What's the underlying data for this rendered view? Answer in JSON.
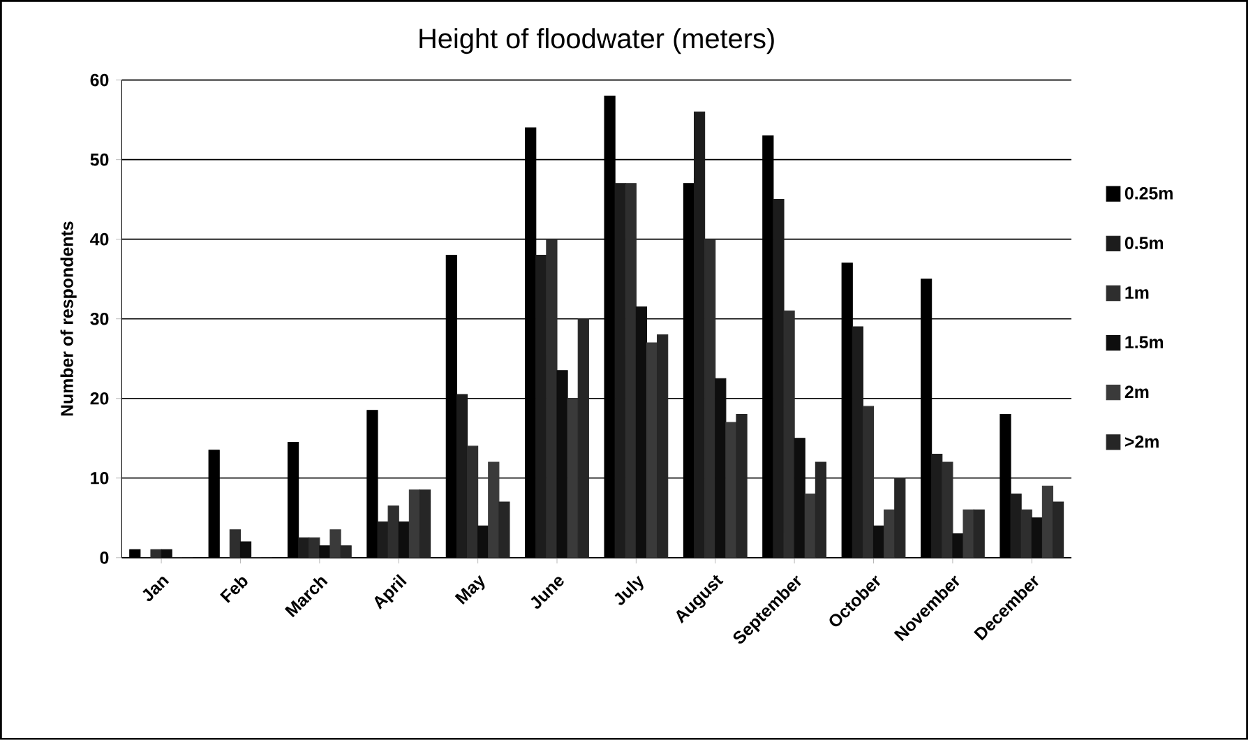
{
  "chart_data": {
    "type": "bar",
    "title": "Height of floodwater (meters)",
    "ylabel": "Number of respondents",
    "categories": [
      "Jan",
      "Feb",
      "March",
      "April",
      "May",
      "June",
      "July",
      "August",
      "September",
      "October",
      "November",
      "December"
    ],
    "series": [
      {
        "name": "0.25m",
        "color": "#000000",
        "values": [
          1,
          13.5,
          14.5,
          18.5,
          38,
          54,
          58,
          47,
          53,
          37,
          35,
          18
        ]
      },
      {
        "name": "0.5m",
        "color": "#1c1c1c",
        "values": [
          0,
          0,
          2.5,
          4.5,
          20.5,
          38,
          47,
          56,
          45,
          29,
          13,
          8
        ]
      },
      {
        "name": "1m",
        "color": "#2e2e2e",
        "values": [
          1,
          3.5,
          2.5,
          6.5,
          14,
          40,
          47,
          40,
          31,
          19,
          12,
          6
        ]
      },
      {
        "name": "1.5m",
        "color": "#0e0e0e",
        "values": [
          1,
          2,
          1.5,
          4.5,
          4,
          23.5,
          31.5,
          22.5,
          15,
          4,
          3,
          5
        ]
      },
      {
        "name": "2m",
        "color": "#3a3a3a",
        "values": [
          0,
          0,
          3.5,
          8.5,
          12,
          20,
          27,
          17,
          8,
          6,
          6,
          9
        ]
      },
      {
        "name": ">2m",
        "color": "#262626",
        "values": [
          0,
          0,
          1.5,
          8.5,
          7,
          30,
          28,
          18,
          12,
          10,
          6,
          7
        ]
      }
    ],
    "ylim": [
      0,
      60
    ],
    "yticks": [
      0,
      10,
      20,
      30,
      40,
      50,
      60
    ],
    "grid": "y",
    "legend": "right"
  }
}
